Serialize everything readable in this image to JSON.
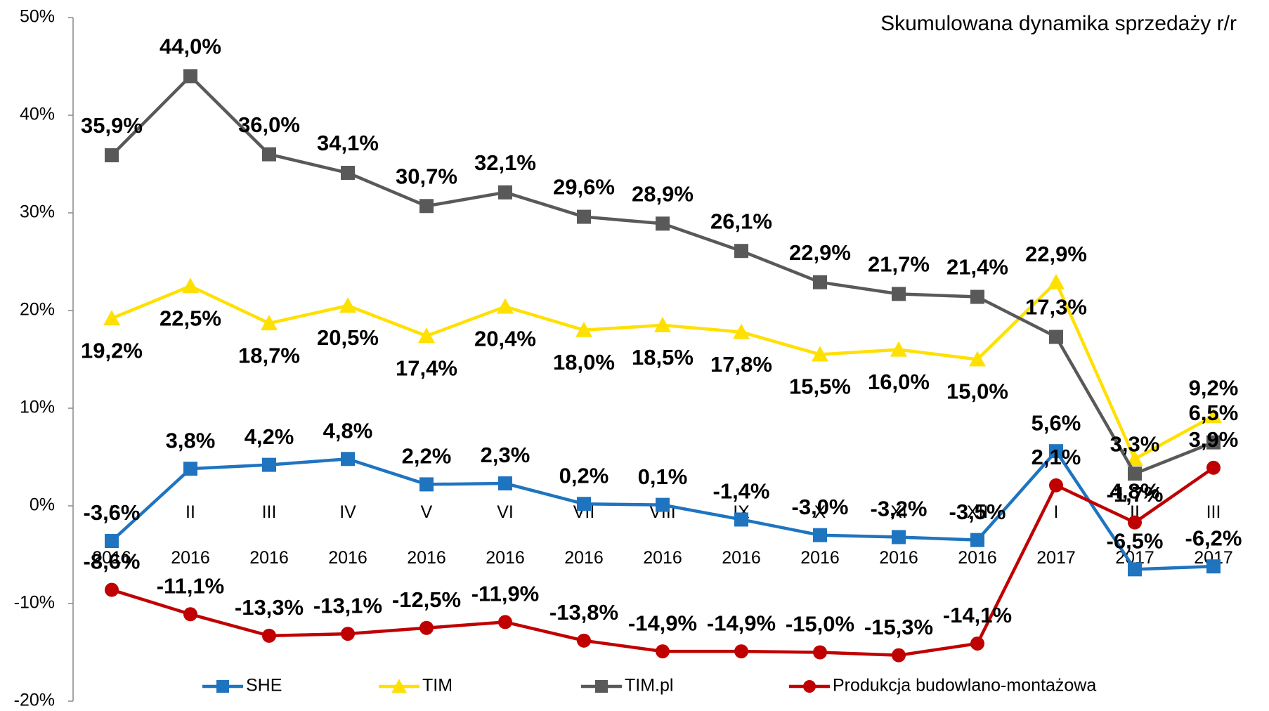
{
  "chart_data": {
    "type": "line",
    "title": "Skumulowana dynamika sprzedaży r/r",
    "categories": [
      "I 2016",
      "II 2016",
      "III 2016",
      "IV 2016",
      "V 2016",
      "VI 2016",
      "VII 2016",
      "VIII 2016",
      "IX 2016",
      "X 2016",
      "XI 2016",
      "XII 2016",
      "I 2017",
      "II 2017",
      "III 2017"
    ],
    "ylim": [
      -20,
      50
    ],
    "yticks": [
      {
        "value": -20,
        "label": "-20%"
      },
      {
        "value": -10,
        "label": "-10%"
      },
      {
        "value": 0,
        "label": "0%"
      },
      {
        "value": 10,
        "label": "10%"
      },
      {
        "value": 20,
        "label": "20%"
      },
      {
        "value": 30,
        "label": "30%"
      },
      {
        "value": 40,
        "label": "40%"
      },
      {
        "value": 50,
        "label": "50%"
      }
    ],
    "series": [
      {
        "name": "SHE",
        "color": "#1f74c0",
        "marker": "square",
        "values": [
          -3.6,
          3.8,
          4.2,
          4.8,
          2.2,
          2.3,
          0.2,
          0.1,
          -1.4,
          -3.0,
          -3.2,
          -3.5,
          5.6,
          -6.5,
          -6.2
        ],
        "value_labels": [
          "-3,6%",
          "3,8%",
          "4,2%",
          "4,8%",
          "2,2%",
          "2,3%",
          "0,2%",
          "0,1%",
          "-1,4%",
          "-3,0%",
          "-3,2%",
          "-3,5%",
          "5,6%",
          "-6,5%",
          "-6,2%"
        ]
      },
      {
        "name": "TIM",
        "color": "#ffe000",
        "marker": "triangle",
        "values": [
          19.2,
          22.5,
          18.7,
          20.5,
          17.4,
          20.4,
          18.0,
          18.5,
          17.8,
          15.5,
          16.0,
          15.0,
          22.9,
          4.8,
          9.2
        ],
        "value_labels": [
          "19,2%",
          "22,5%",
          "18,7%",
          "20,5%",
          "17,4%",
          "20,4%",
          "18,0%",
          "18,5%",
          "17,8%",
          "15,5%",
          "16,0%",
          "15,0%",
          "22,9%",
          "4,8%",
          "9,2%"
        ]
      },
      {
        "name": "TIM.pl",
        "color": "#595959",
        "marker": "square",
        "values": [
          35.9,
          44.0,
          36.0,
          34.1,
          30.7,
          32.1,
          29.6,
          28.9,
          26.1,
          22.9,
          21.7,
          21.4,
          17.3,
          3.3,
          6.5
        ],
        "value_labels": [
          "35,9%",
          "44,0%",
          "36,0%",
          "34,1%",
          "30,7%",
          "32,1%",
          "29,6%",
          "28,9%",
          "26,1%",
          "22,9%",
          "21,7%",
          "21,4%",
          "17,3%",
          "3,3%",
          "6,5%"
        ]
      },
      {
        "name": "Produkcja budowlano-montażowa",
        "color": "#c00000",
        "marker": "circle",
        "values": [
          -8.6,
          -11.1,
          -13.3,
          -13.1,
          -12.5,
          -11.9,
          -13.8,
          -14.9,
          -14.9,
          -15.0,
          -15.3,
          -14.1,
          2.1,
          -1.7,
          3.9
        ],
        "value_labels": [
          "-8,6%",
          "-11,1%",
          "-13,3%",
          "-13,1%",
          "-12,5%",
          "-11,9%",
          "-13,8%",
          "-14,9%",
          "-14,9%",
          "-15,0%",
          "-15,3%",
          "-14,1%",
          "2,1%",
          "-1,7%",
          "3,9%"
        ]
      }
    ]
  }
}
